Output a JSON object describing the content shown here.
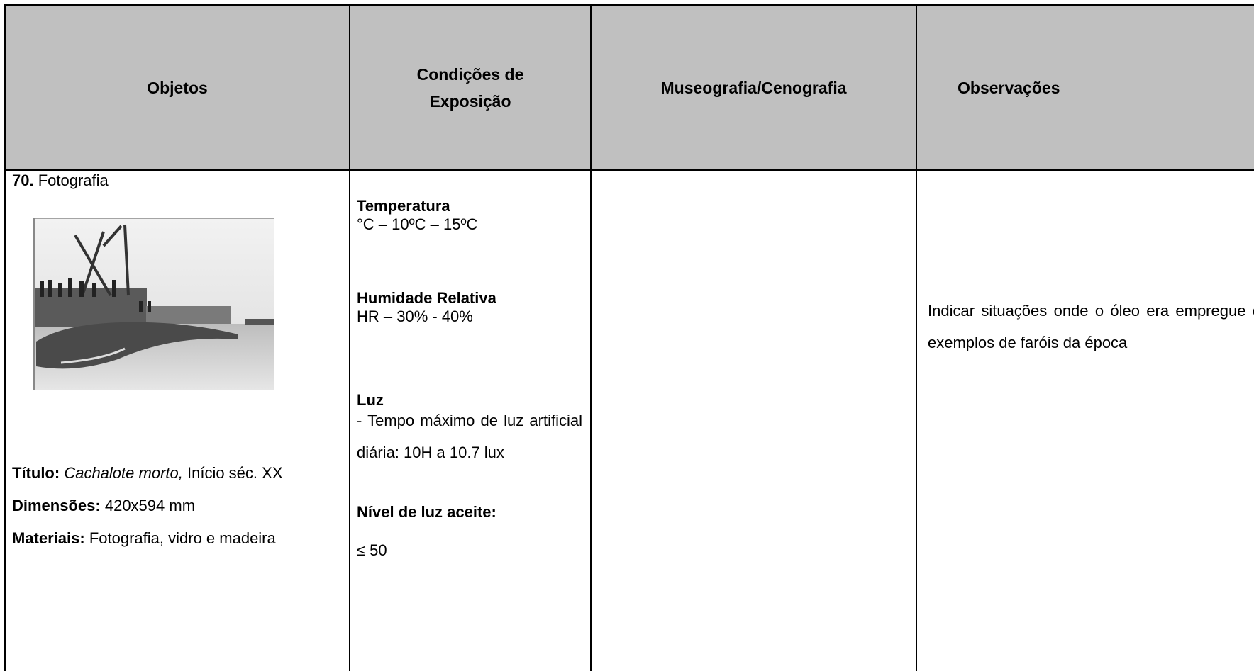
{
  "table": {
    "header": [
      "Objetos",
      "Condições de Exposição",
      "Museografia/Cenografia",
      "Observações"
    ],
    "rows": [
      {
        "objeto": {
          "number": "70.",
          "type": "Fotografia",
          "title_label": "Título:",
          "title_value": "Cachalote morto,",
          "title_date": "Início séc. XX",
          "dimensions_label": "Dimensões:",
          "dimensions_value": "420x594 mm",
          "materials_label": "Materiais:",
          "materials_value": "Fotografia, vidro e madeira"
        },
        "condicoes": {
          "temperature_label": "Temperatura",
          "temperature_value": "°C – 10ºC – 15ºC",
          "humidity_label": "Humidade Relativa",
          "humidity_value": "HR – 30% - 40%",
          "light_label": "Luz",
          "light_value": "- Tempo máximo de luz artificial diária: 10H a 10.7 lux",
          "light_level_label": "Nível de luz aceite:",
          "light_level_value": "≤ 50"
        },
        "museografia": "",
        "observacoes": "Indicar situações onde o óleo era empregue e exemplos de faróis da época"
      }
    ]
  }
}
